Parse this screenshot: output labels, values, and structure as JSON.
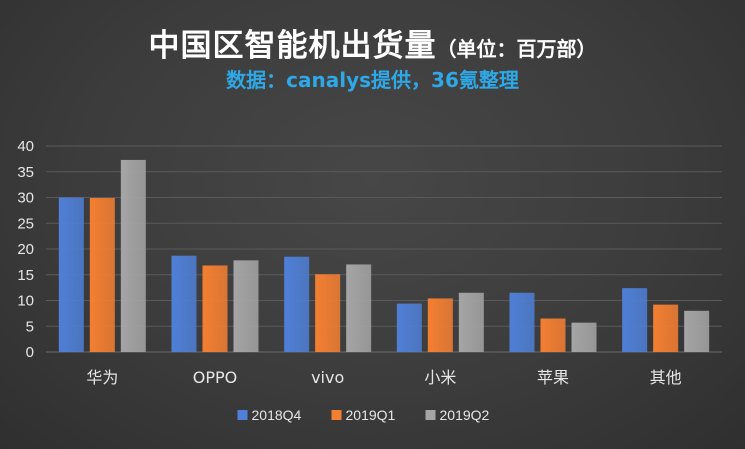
{
  "title": {
    "main": "中国区智能机出货量",
    "unit": "（单位：百万部）",
    "subtitle": "数据：canalys提供，36氪整理"
  },
  "colors": {
    "background": "#3c3c3c",
    "title": "#ffffff",
    "subtitle": "#2ea8e6",
    "gridline": "#5a5a5a",
    "text": "#e6e6e6"
  },
  "chart_data": {
    "type": "bar",
    "title": "中国区智能机出货量（单位：百万部）",
    "subtitle": "数据：canalys提供，36氪整理",
    "categories": [
      "华为",
      "OPPO",
      "vivo",
      "小米",
      "苹果",
      "其他"
    ],
    "series": [
      {
        "name": "2018Q4",
        "color": "#4f7fd6",
        "values": [
          30.0,
          18.7,
          18.5,
          9.4,
          11.5,
          12.4
        ]
      },
      {
        "name": "2019Q1",
        "color": "#f47f32",
        "values": [
          29.9,
          16.8,
          15.1,
          10.4,
          6.5,
          9.2
        ]
      },
      {
        "name": "2019Q2",
        "color": "#a5a5a5",
        "values": [
          37.3,
          17.8,
          17.0,
          11.5,
          5.7,
          8.0
        ]
      }
    ],
    "ylim": [
      0,
      40
    ],
    "yticks": [
      "0",
      "5",
      "10",
      "15",
      "20",
      "25",
      "30",
      "35",
      "40"
    ],
    "ytick_values": [
      0,
      5,
      10,
      15,
      20,
      25,
      30,
      35,
      40
    ],
    "grid": true,
    "legend_position": "bottom",
    "xlabel": "",
    "ylabel": ""
  }
}
